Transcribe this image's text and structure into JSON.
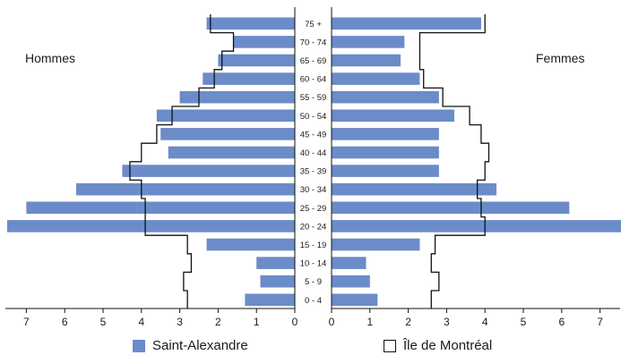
{
  "chart_data": {
    "type": "bar",
    "subtype": "population-pyramid",
    "left_label": "Hommes",
    "right_label": "Femmes",
    "categories": [
      "75 +",
      "70 - 74",
      "65 - 69",
      "60 - 64",
      "55 - 59",
      "50 - 54",
      "45 - 49",
      "40 - 44",
      "35 - 39",
      "30 - 34",
      "25 - 29",
      "20 - 24",
      "15 - 19",
      "10 - 14",
      "5 - 9",
      "0 - 4"
    ],
    "series": [
      {
        "name": "Saint-Alexandre",
        "style": "bars",
        "color": "#6b8cc9",
        "hommes": [
          2.3,
          1.6,
          2.0,
          2.4,
          3.0,
          3.6,
          3.5,
          3.3,
          4.5,
          5.7,
          7.0,
          7.5,
          2.3,
          1.0,
          0.9,
          1.3
        ],
        "femmes": [
          3.9,
          1.9,
          1.8,
          2.3,
          2.8,
          3.2,
          2.8,
          2.8,
          2.8,
          4.3,
          6.2,
          7.6,
          2.3,
          0.9,
          1.0,
          1.2
        ]
      },
      {
        "name": "Île de Montréal",
        "style": "outline",
        "color": "#111111",
        "hommes": [
          2.2,
          1.6,
          1.9,
          2.1,
          2.5,
          3.2,
          3.6,
          4.0,
          4.3,
          4.0,
          3.9,
          3.9,
          2.8,
          2.7,
          2.9,
          2.8
        ],
        "femmes": [
          4.0,
          2.3,
          2.3,
          2.4,
          2.9,
          3.6,
          3.9,
          4.1,
          4.0,
          3.8,
          3.9,
          4.0,
          2.7,
          2.6,
          2.8,
          2.6
        ]
      }
    ],
    "left_axis": {
      "ticks": [
        "7",
        "6",
        "5",
        "4",
        "3",
        "2",
        "1",
        "0"
      ],
      "range": [
        0,
        7.5
      ],
      "reversed": true
    },
    "right_axis": {
      "ticks": [
        "0",
        "1",
        "2",
        "3",
        "4",
        "5",
        "6",
        "7"
      ],
      "range": [
        0,
        7.5
      ]
    },
    "grid": false,
    "legend_position": "bottom"
  }
}
